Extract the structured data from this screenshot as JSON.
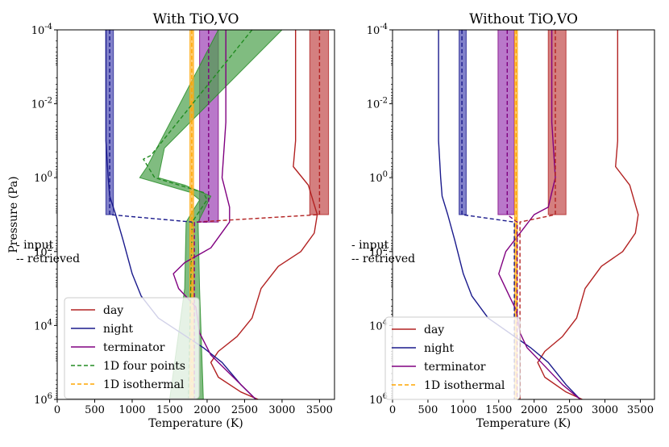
{
  "chart_data": [
    {
      "type": "line",
      "title": "With TiO,VO",
      "xlabel": "Temperature (K)",
      "ylabel": "Pressure (Pa)",
      "xlim": [
        0,
        3700
      ],
      "xticks": [
        "0",
        "500",
        "1000",
        "1500",
        "2000",
        "2500",
        "3000",
        "3500"
      ],
      "ylog": true,
      "ylim_log10": [
        6,
        -4
      ],
      "yticks": [
        {
          "base": "10",
          "exp": "-4",
          "log": -4
        },
        {
          "base": "10",
          "exp": "-2",
          "log": -2
        },
        {
          "base": "10",
          "exp": "0",
          "log": 0
        },
        {
          "base": "10",
          "exp": "2",
          "log": 2
        },
        {
          "base": "10",
          "exp": "4",
          "log": 4
        },
        {
          "base": "10",
          "exp": "6",
          "log": 6
        }
      ],
      "notes": [
        "-  input",
        "-- retrieved"
      ],
      "legend": [
        {
          "label": "day",
          "color": "#b22222",
          "dash": false
        },
        {
          "label": "night",
          "color": "#1a1a8c",
          "dash": false
        },
        {
          "label": "terminator",
          "color": "#800080",
          "dash": false
        },
        {
          "label": "1D four points",
          "color": "#228b22",
          "dash": true
        },
        {
          "label": "1D isothermal",
          "color": "#ffa500",
          "dash": true
        }
      ],
      "input_series": [
        {
          "name": "day",
          "color": "#b22222",
          "points": [
            [
              3180,
              -4
            ],
            [
              3180,
              -1
            ],
            [
              3150,
              -0.3
            ],
            [
              3350,
              0.2
            ],
            [
              3470,
              1.0
            ],
            [
              3430,
              1.5
            ],
            [
              3250,
              2.0
            ],
            [
              2950,
              2.4
            ],
            [
              2720,
              3.0
            ],
            [
              2600,
              3.8
            ],
            [
              2400,
              4.3
            ],
            [
              2150,
              4.7
            ],
            [
              2050,
              5.0
            ],
            [
              2150,
              5.4
            ],
            [
              2450,
              5.8
            ],
            [
              2680,
              6
            ]
          ]
        },
        {
          "name": "night",
          "color": "#1a1a8c",
          "points": [
            [
              650,
              -4
            ],
            [
              650,
              -1
            ],
            [
              680,
              0
            ],
            [
              700,
              0.5
            ],
            [
              780,
              1
            ],
            [
              880,
              1.7
            ],
            [
              1000,
              2.6
            ],
            [
              1120,
              3.2
            ],
            [
              1350,
              3.8
            ],
            [
              1650,
              4.2
            ],
            [
              1950,
              4.6
            ],
            [
              2200,
              5.0
            ],
            [
              2450,
              5.6
            ],
            [
              2650,
              6
            ]
          ]
        },
        {
          "name": "terminator",
          "color": "#800080",
          "points": [
            [
              2250,
              -4
            ],
            [
              2250,
              -1.5
            ],
            [
              2200,
              0
            ],
            [
              2300,
              0.8
            ],
            [
              2300,
              1.2
            ],
            [
              2050,
              1.9
            ],
            [
              1700,
              2.3
            ],
            [
              1550,
              2.6
            ],
            [
              1620,
              3.0
            ],
            [
              1850,
              3.5
            ],
            [
              1900,
              4.2
            ],
            [
              2050,
              4.8
            ],
            [
              2300,
              5.3
            ],
            [
              2550,
              5.8
            ],
            [
              2650,
              6
            ]
          ]
        }
      ],
      "retrieved_series": [
        {
          "name": "day",
          "color": "#b22222",
          "segments": [
            [
              [
                3500,
                -4
              ],
              [
                3500,
                1.0
              ],
              [
                1850,
                1.2
              ]
            ]
          ],
          "band_color": "#c24848",
          "bands": [
            [
              [
                3370,
                3620,
                -4
              ],
              [
                3370,
                3620,
                1.0
              ]
            ]
          ]
        },
        {
          "name": "night",
          "color": "#1a1a8c",
          "segments": [
            [
              [
                700,
                -4
              ],
              [
                700,
                1.0
              ],
              [
                1800,
                1.2
              ]
            ]
          ],
          "band_color": "#4b4bb4",
          "bands": [
            [
              [
                650,
                750,
                -4
              ],
              [
                650,
                750,
                1.0
              ]
            ]
          ]
        },
        {
          "name": "terminator",
          "color": "#800080",
          "segments": [
            [
              [
                2020,
                -4
              ],
              [
                2020,
                1.2
              ],
              [
                1830,
                1.2
              ],
              [
                1830,
                6
              ]
            ]
          ],
          "band_color": "#9b3fb4",
          "bands": [
            [
              [
                1900,
                2150,
                -4
              ],
              [
                1900,
                2150,
                1.2
              ]
            ]
          ]
        },
        {
          "name": "1D four points",
          "color": "#228b22",
          "segments": [
            [
              [
                2600,
                -4
              ],
              [
                1250,
                -0.6
              ],
              [
                1150,
                -0.5
              ],
              [
                1300,
                0
              ],
              [
                1950,
                0.4
              ],
              [
                2000,
                0.6
              ],
              [
                1800,
                1.2
              ],
              [
                1750,
                6
              ]
            ]
          ],
          "band_color": "#4aa04a",
          "band_poly": [
            [
              3000,
              -4
            ],
            [
              1430,
              -0.8
            ],
            [
              1350,
              0
            ],
            [
              1700,
              0.2
            ],
            [
              2050,
              0.5
            ],
            [
              1880,
              1.2
            ],
            [
              1900,
              3
            ],
            [
              1950,
              6
            ],
            [
              1500,
              6
            ],
            [
              1700,
              3
            ],
            [
              1720,
              1.2
            ],
            [
              1900,
              0.6
            ],
            [
              1780,
              0.4
            ],
            [
              1100,
              0
            ],
            [
              1200,
              -0.3
            ],
            [
              2150,
              -4
            ]
          ]
        },
        {
          "name": "1D isothermal",
          "color": "#ffa500",
          "segments": [
            [
              [
                1795,
                -4
              ],
              [
                1795,
                6
              ]
            ]
          ],
          "band_color": "#ffb732",
          "bands": [
            [
              [
                1770,
                1820,
                -4
              ],
              [
                1770,
                1820,
                6
              ]
            ]
          ]
        }
      ]
    },
    {
      "type": "line",
      "title": "Without TiO,VO",
      "xlabel": "Temperature (K)",
      "ylabel": "",
      "xlim": [
        0,
        3700
      ],
      "xticks": [
        "0",
        "500",
        "1000",
        "1500",
        "2000",
        "2500",
        "3000",
        "3500"
      ],
      "ylog": true,
      "ylim_log10": [
        6,
        -4
      ],
      "yticks": [
        {
          "base": "10",
          "exp": "-4",
          "log": -4
        },
        {
          "base": "10",
          "exp": "-2",
          "log": -2
        },
        {
          "base": "10",
          "exp": "0",
          "log": 0
        },
        {
          "base": "10",
          "exp": "2",
          "log": 2
        },
        {
          "base": "10",
          "exp": "4",
          "log": 4
        },
        {
          "base": "10",
          "exp": "6",
          "log": 6
        }
      ],
      "notes": [
        "-  input",
        "-- retrieved"
      ],
      "legend": [
        {
          "label": "day",
          "color": "#b22222",
          "dash": false
        },
        {
          "label": "night",
          "color": "#1a1a8c",
          "dash": false
        },
        {
          "label": "terminator",
          "color": "#800080",
          "dash": false
        },
        {
          "label": "1D isothermal",
          "color": "#ffa500",
          "dash": true
        }
      ],
      "input_series": [
        {
          "name": "day",
          "color": "#b22222",
          "points": [
            [
              3180,
              -4
            ],
            [
              3180,
              -1
            ],
            [
              3150,
              -0.3
            ],
            [
              3350,
              0.2
            ],
            [
              3470,
              1.0
            ],
            [
              3430,
              1.5
            ],
            [
              3250,
              2.0
            ],
            [
              2950,
              2.4
            ],
            [
              2720,
              3.0
            ],
            [
              2600,
              3.8
            ],
            [
              2400,
              4.3
            ],
            [
              2150,
              4.7
            ],
            [
              2050,
              5.0
            ],
            [
              2150,
              5.4
            ],
            [
              2450,
              5.8
            ],
            [
              2680,
              6
            ]
          ]
        },
        {
          "name": "night",
          "color": "#1a1a8c",
          "points": [
            [
              650,
              -4
            ],
            [
              650,
              -1
            ],
            [
              680,
              0
            ],
            [
              700,
              0.5
            ],
            [
              780,
              1
            ],
            [
              880,
              1.7
            ],
            [
              1000,
              2.6
            ],
            [
              1120,
              3.2
            ],
            [
              1350,
              3.8
            ],
            [
              1650,
              4.2
            ],
            [
              1950,
              4.6
            ],
            [
              2200,
              5.0
            ],
            [
              2450,
              5.6
            ],
            [
              2650,
              6
            ]
          ]
        },
        {
          "name": "terminator",
          "color": "#800080",
          "points": [
            [
              2250,
              -4
            ],
            [
              2250,
              -1.5
            ],
            [
              2300,
              0
            ],
            [
              2200,
              0.8
            ],
            [
              2000,
              1.0
            ],
            [
              1800,
              1.5
            ],
            [
              1600,
              2.0
            ],
            [
              1500,
              2.6
            ],
            [
              1650,
              3.2
            ],
            [
              1750,
              3.6
            ],
            [
              1800,
              4.2
            ],
            [
              1900,
              4.6
            ],
            [
              2100,
              5.0
            ],
            [
              2400,
              5.6
            ],
            [
              2650,
              6
            ]
          ]
        }
      ],
      "retrieved_series": [
        {
          "name": "day",
          "color": "#b22222",
          "segments": [
            [
              [
                2300,
                -4
              ],
              [
                2300,
                1.0
              ],
              [
                1800,
                1.2
              ],
              [
                1800,
                6
              ]
            ]
          ],
          "band_color": "#c24848",
          "bands": [
            [
              [
                2200,
                2450,
                -4
              ],
              [
                2200,
                2450,
                1.0
              ]
            ]
          ]
        },
        {
          "name": "night",
          "color": "#1a1a8c",
          "segments": [
            [
              [
                980,
                -4
              ],
              [
                980,
                1.0
              ],
              [
                1720,
                1.2
              ],
              [
                1720,
                6
              ]
            ]
          ],
          "band_color": "#4b4bb4",
          "bands": [
            [
              [
                940,
                1040,
                -4
              ],
              [
                940,
                1040,
                1.0
              ]
            ]
          ]
        },
        {
          "name": "terminator",
          "color": "#800080",
          "segments": [
            [
              [
                1620,
                -4
              ],
              [
                1620,
                1.0
              ],
              [
                1760,
                1.2
              ],
              [
                1760,
                6
              ]
            ]
          ],
          "band_color": "#9b3fb4",
          "bands": [
            [
              [
                1490,
                1720,
                -4
              ],
              [
                1490,
                1720,
                1.0
              ]
            ]
          ]
        },
        {
          "name": "1D isothermal",
          "color": "#ffa500",
          "segments": [
            [
              [
                1745,
                -4
              ],
              [
                1745,
                6
              ]
            ]
          ],
          "band_color": "#ffb732",
          "bands": [
            [
              [
                1725,
                1765,
                -4
              ],
              [
                1725,
                1765,
                6
              ]
            ]
          ]
        }
      ]
    }
  ]
}
